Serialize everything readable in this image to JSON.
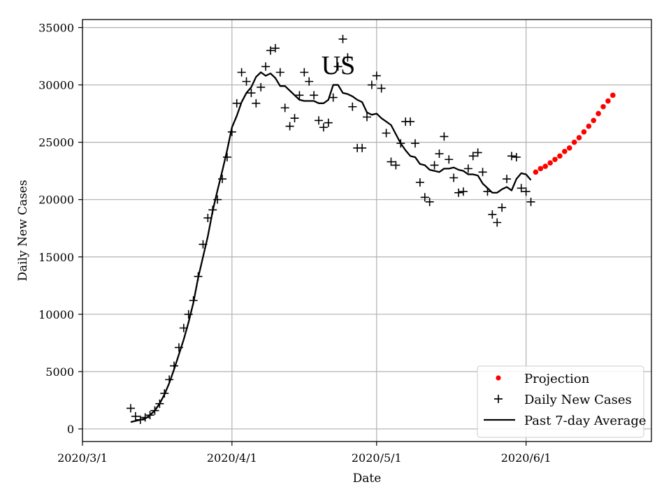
{
  "chart_data": {
    "type": "line",
    "title": "US",
    "xlabel": "Date",
    "ylabel": "Daily New Cases",
    "x_ticks": [
      "2020/3/1",
      "2020/4/1",
      "2020/5/1",
      "2020/6/1"
    ],
    "x_range": [
      "2020-03-01",
      "2020-06-27"
    ],
    "y_ticks": [
      0,
      5000,
      10000,
      15000,
      20000,
      25000,
      30000,
      35000
    ],
    "ylim": [
      -1100,
      35700
    ],
    "grid": true,
    "legend_position": "lower-right",
    "series": [
      {
        "name": "Projection",
        "style": "markers",
        "color": "#ff0000",
        "start_date": "2020-06-03",
        "values": [
          22400,
          22700,
          22900,
          23200,
          23500,
          23800,
          24200,
          24500,
          25000,
          25400,
          25900,
          26400,
          26900,
          27500,
          28100,
          28600,
          29100
        ]
      },
      {
        "name": "Daily New Cases",
        "style": "plus",
        "color": "#000000",
        "start_date": "2020-03-11",
        "values": [
          1800,
          1100,
          800,
          1000,
          1200,
          1600,
          2200,
          3100,
          4300,
          5500,
          7100,
          8800,
          10000,
          11200,
          13300,
          16100,
          18400,
          19100,
          20000,
          21800,
          23700,
          25900,
          28400,
          31100,
          30300,
          29300,
          28400,
          29800,
          31600,
          33000,
          33200,
          31100,
          28000,
          26400,
          27100,
          29100,
          31100,
          30300,
          29100,
          26900,
          26300,
          26700,
          28900,
          31600,
          34000,
          32400,
          28100,
          24500,
          24500,
          27200,
          30000,
          30800,
          29700,
          25800,
          23300,
          23000,
          24900,
          26800,
          26800,
          24900,
          21500,
          20200,
          19800,
          23000,
          24000,
          25500,
          23500,
          21900,
          20600,
          20700,
          22700,
          23800,
          24100,
          22400,
          20700,
          18700,
          18000,
          19300,
          21800,
          23800,
          23700,
          21000,
          20700,
          19800
        ]
      },
      {
        "name": "Past 7-day Average",
        "style": "line",
        "color": "#000000",
        "start_date": "2020-03-11",
        "values": [
          600,
          700,
          800,
          900,
          1200,
          1600,
          2200,
          3000,
          4000,
          5200,
          6500,
          7800,
          9300,
          11000,
          13200,
          15000,
          16800,
          19000,
          20800,
          22500,
          24300,
          26300,
          27300,
          28500,
          29300,
          29800,
          30700,
          31100,
          30800,
          31000,
          30600,
          29900,
          29900,
          29500,
          29100,
          28700,
          28600,
          28600,
          28600,
          28400,
          28400,
          28700,
          30000,
          30000,
          29300,
          29200,
          29000,
          28700,
          28500,
          27600,
          27400,
          27500,
          27100,
          26800,
          26500,
          25700,
          24900,
          24300,
          23800,
          23700,
          23100,
          23000,
          22600,
          22500,
          22400,
          22700,
          22700,
          22800,
          22600,
          22500,
          22200,
          22200,
          22100,
          21400,
          21000,
          20600,
          20600,
          20900,
          21100,
          20800,
          21800,
          22300,
          22200,
          21700
        ]
      }
    ]
  }
}
